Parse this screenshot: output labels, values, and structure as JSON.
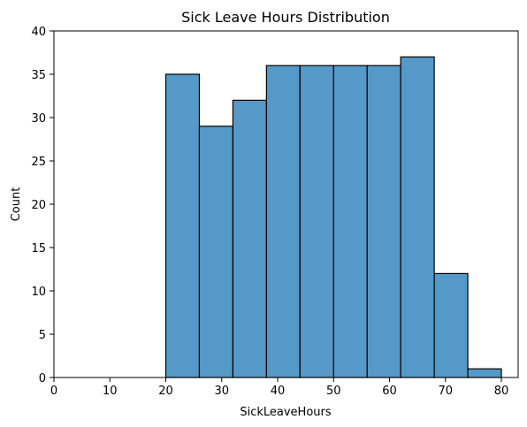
{
  "chart_data": {
    "type": "bar",
    "title": "Sick Leave Hours Distribution",
    "xlabel": "SickLeaveHours",
    "ylabel": "Count",
    "bins": [
      {
        "x0": 20,
        "x1": 26,
        "count": 35
      },
      {
        "x0": 26,
        "x1": 32,
        "count": 29
      },
      {
        "x0": 32,
        "x1": 38,
        "count": 32
      },
      {
        "x0": 38,
        "x1": 44,
        "count": 36
      },
      {
        "x0": 44,
        "x1": 50,
        "count": 36
      },
      {
        "x0": 50,
        "x1": 56,
        "count": 36
      },
      {
        "x0": 56,
        "x1": 62,
        "count": 36
      },
      {
        "x0": 62,
        "x1": 68,
        "count": 37
      },
      {
        "x0": 68,
        "x1": 74,
        "count": 12
      },
      {
        "x0": 74,
        "x1": 80,
        "count": 1
      }
    ],
    "xlim": [
      0,
      83
    ],
    "ylim": [
      0,
      40
    ],
    "x_ticks": [
      0,
      10,
      20,
      30,
      40,
      50,
      60,
      70,
      80
    ],
    "y_ticks": [
      0,
      5,
      10,
      15,
      20,
      25,
      30,
      35,
      40
    ],
    "grid": false,
    "colors": {
      "bar_fill": "#5599c8",
      "bar_edge": "#000000"
    }
  }
}
